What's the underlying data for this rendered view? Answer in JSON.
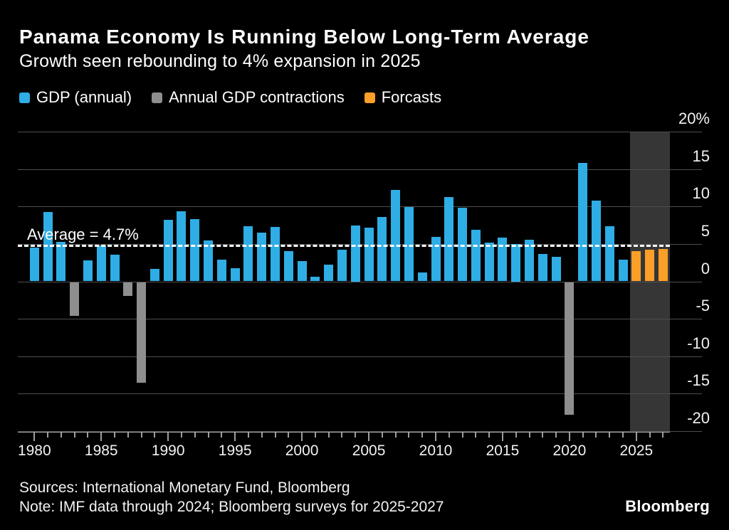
{
  "page": {
    "title": "Panama Economy Is Running Below Long-Term Average",
    "subtitle": "Growth seen rebounding to 4% expansion in 2025"
  },
  "legend": {
    "items": [
      {
        "label": "GDP (annual)",
        "color_key": "gdp_blue"
      },
      {
        "label": "Annual GDP contractions",
        "color_key": "contraction_gray"
      },
      {
        "label": "Forcasts",
        "color_key": "forecast_orange"
      }
    ]
  },
  "annotation": {
    "average_label": "Average = 4.7%"
  },
  "footer": {
    "sources": "Sources: International Monetary Fund, Bloomberg",
    "note": "Note: IMF data through 2024; Bloomberg surveys for 2025-2027",
    "brand": "Bloomberg"
  },
  "colors": {
    "background": "#000000",
    "text": "#FFFFFF",
    "gdp_blue": "#2FADE5",
    "contraction_gray": "#8E8E8E",
    "forecast_orange": "#FB9F28",
    "forecast_band": "#363636",
    "gridline": "#4E4E4E",
    "axis": "#ACACAC",
    "average_line": "#FFFFFF"
  },
  "chart_data": {
    "type": "bar",
    "title": "Panama Economy Is Running Below Long-Term Average",
    "subtitle": "Growth seen rebounding to 4% expansion in 2025",
    "xlabel": "",
    "ylabel": "%",
    "ylim": [
      -20,
      20
    ],
    "ytick_interval": 5,
    "ytick_labels": [
      "20%",
      "15",
      "10",
      "5",
      "0",
      "-5",
      "-10",
      "-15",
      "-20"
    ],
    "xtick_labels": [
      "1980",
      "1985",
      "1990",
      "1995",
      "2000",
      "2005",
      "2010",
      "2015",
      "2020",
      "2025"
    ],
    "grid": true,
    "legend_position": "top",
    "average_line_value": 4.7,
    "forecast_band_years": [
      2025,
      2026,
      2027
    ],
    "bars": [
      {
        "year": 1980,
        "value": 4.5,
        "kind": "gdp"
      },
      {
        "year": 1981,
        "value": 9.3,
        "kind": "gdp"
      },
      {
        "year": 1982,
        "value": 5.3,
        "kind": "gdp"
      },
      {
        "year": 1983,
        "value": -4.5,
        "kind": "contraction"
      },
      {
        "year": 1984,
        "value": 2.8,
        "kind": "gdp"
      },
      {
        "year": 1985,
        "value": 4.8,
        "kind": "gdp"
      },
      {
        "year": 1986,
        "value": 3.6,
        "kind": "gdp"
      },
      {
        "year": 1987,
        "value": -1.9,
        "kind": "contraction"
      },
      {
        "year": 1988,
        "value": -13.4,
        "kind": "contraction"
      },
      {
        "year": 1989,
        "value": 1.7,
        "kind": "gdp"
      },
      {
        "year": 1990,
        "value": 8.2,
        "kind": "gdp"
      },
      {
        "year": 1991,
        "value": 9.4,
        "kind": "gdp"
      },
      {
        "year": 1992,
        "value": 8.3,
        "kind": "gdp"
      },
      {
        "year": 1993,
        "value": 5.5,
        "kind": "gdp"
      },
      {
        "year": 1994,
        "value": 2.9,
        "kind": "gdp"
      },
      {
        "year": 1995,
        "value": 1.8,
        "kind": "gdp"
      },
      {
        "year": 1996,
        "value": 7.4,
        "kind": "gdp"
      },
      {
        "year": 1997,
        "value": 6.5,
        "kind": "gdp"
      },
      {
        "year": 1998,
        "value": 7.3,
        "kind": "gdp"
      },
      {
        "year": 1999,
        "value": 4.0,
        "kind": "gdp"
      },
      {
        "year": 2000,
        "value": 2.7,
        "kind": "gdp"
      },
      {
        "year": 2001,
        "value": 0.6,
        "kind": "gdp"
      },
      {
        "year": 2002,
        "value": 2.2,
        "kind": "gdp"
      },
      {
        "year": 2003,
        "value": 4.2,
        "kind": "gdp"
      },
      {
        "year": 2004,
        "value": 7.5,
        "kind": "gdp"
      },
      {
        "year": 2005,
        "value": 7.2,
        "kind": "gdp"
      },
      {
        "year": 2006,
        "value": 8.6,
        "kind": "gdp"
      },
      {
        "year": 2007,
        "value": 12.2,
        "kind": "gdp"
      },
      {
        "year": 2008,
        "value": 9.9,
        "kind": "gdp"
      },
      {
        "year": 2009,
        "value": 1.2,
        "kind": "gdp"
      },
      {
        "year": 2010,
        "value": 5.9,
        "kind": "gdp"
      },
      {
        "year": 2011,
        "value": 11.3,
        "kind": "gdp"
      },
      {
        "year": 2012,
        "value": 9.8,
        "kind": "gdp"
      },
      {
        "year": 2013,
        "value": 6.9,
        "kind": "gdp"
      },
      {
        "year": 2014,
        "value": 5.2,
        "kind": "gdp"
      },
      {
        "year": 2015,
        "value": 5.8,
        "kind": "gdp"
      },
      {
        "year": 2016,
        "value": 5.0,
        "kind": "gdp"
      },
      {
        "year": 2017,
        "value": 5.6,
        "kind": "gdp"
      },
      {
        "year": 2018,
        "value": 3.7,
        "kind": "gdp"
      },
      {
        "year": 2019,
        "value": 3.3,
        "kind": "gdp"
      },
      {
        "year": 2020,
        "value": -17.7,
        "kind": "contraction"
      },
      {
        "year": 2021,
        "value": 15.8,
        "kind": "gdp"
      },
      {
        "year": 2022,
        "value": 10.8,
        "kind": "gdp"
      },
      {
        "year": 2023,
        "value": 7.4,
        "kind": "gdp"
      },
      {
        "year": 2024,
        "value": 2.9,
        "kind": "gdp"
      },
      {
        "year": 2025,
        "value": 4.0,
        "kind": "forecast"
      },
      {
        "year": 2026,
        "value": 4.2,
        "kind": "forecast"
      },
      {
        "year": 2027,
        "value": 4.3,
        "kind": "forecast"
      }
    ]
  }
}
